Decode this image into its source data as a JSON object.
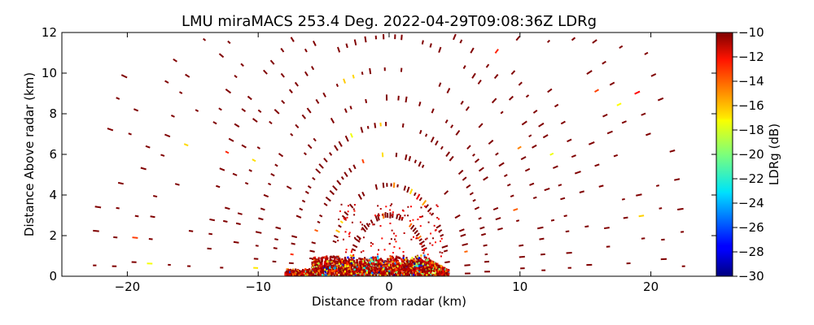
{
  "chart_data": {
    "type": "heatmap",
    "title": "LMU miraMACS 253.4 Deg. 2022-04-29T09:08:36Z  LDRg",
    "xlabel": "Distance from radar (km)",
    "ylabel": "Distance Above radar  (km)",
    "xlim": [
      -25,
      25
    ],
    "ylim": [
      0,
      12
    ],
    "x_ticks": [
      -20,
      -10,
      0,
      10,
      20
    ],
    "x_tick_labels": [
      "−20",
      "−10",
      "0",
      "10",
      "20"
    ],
    "y_ticks": [
      0,
      2,
      4,
      6,
      8,
      10,
      12
    ],
    "y_tick_labels": [
      "0",
      "2",
      "4",
      "6",
      "8",
      "10",
      "12"
    ],
    "grid": false,
    "colorbar": {
      "label": "LDRg (dB)",
      "colormap": "jet",
      "range": [
        -30,
        -10
      ],
      "ticks": [
        -10,
        -12,
        -14,
        -16,
        -18,
        -20,
        -22,
        -24,
        -26,
        -28,
        -30
      ],
      "tick_labels": [
        "−10",
        "−12",
        "−14",
        "−16",
        "−18",
        "−20",
        "−22",
        "−24",
        "−26",
        "−28",
        "−30"
      ]
    },
    "scan": {
      "azimuth_deg": 253.4,
      "timestamp": "2022-04-29T09:08:36Z",
      "variable": "LDRg"
    },
    "features": {
      "speckle_ring_radii_km": [
        3,
        4.5,
        6,
        7.5,
        8.8,
        10.2,
        11.8,
        12.8,
        13.8,
        15.3,
        16.8,
        18.3,
        19.5,
        21,
        22.5
      ],
      "dominant_ldr_db": -10,
      "near_surface_echo": {
        "x_range_km": [
          -8,
          4.5
        ],
        "height_max_km": 1.0,
        "ldr_range_db": [
          -30,
          -10
        ]
      }
    }
  }
}
